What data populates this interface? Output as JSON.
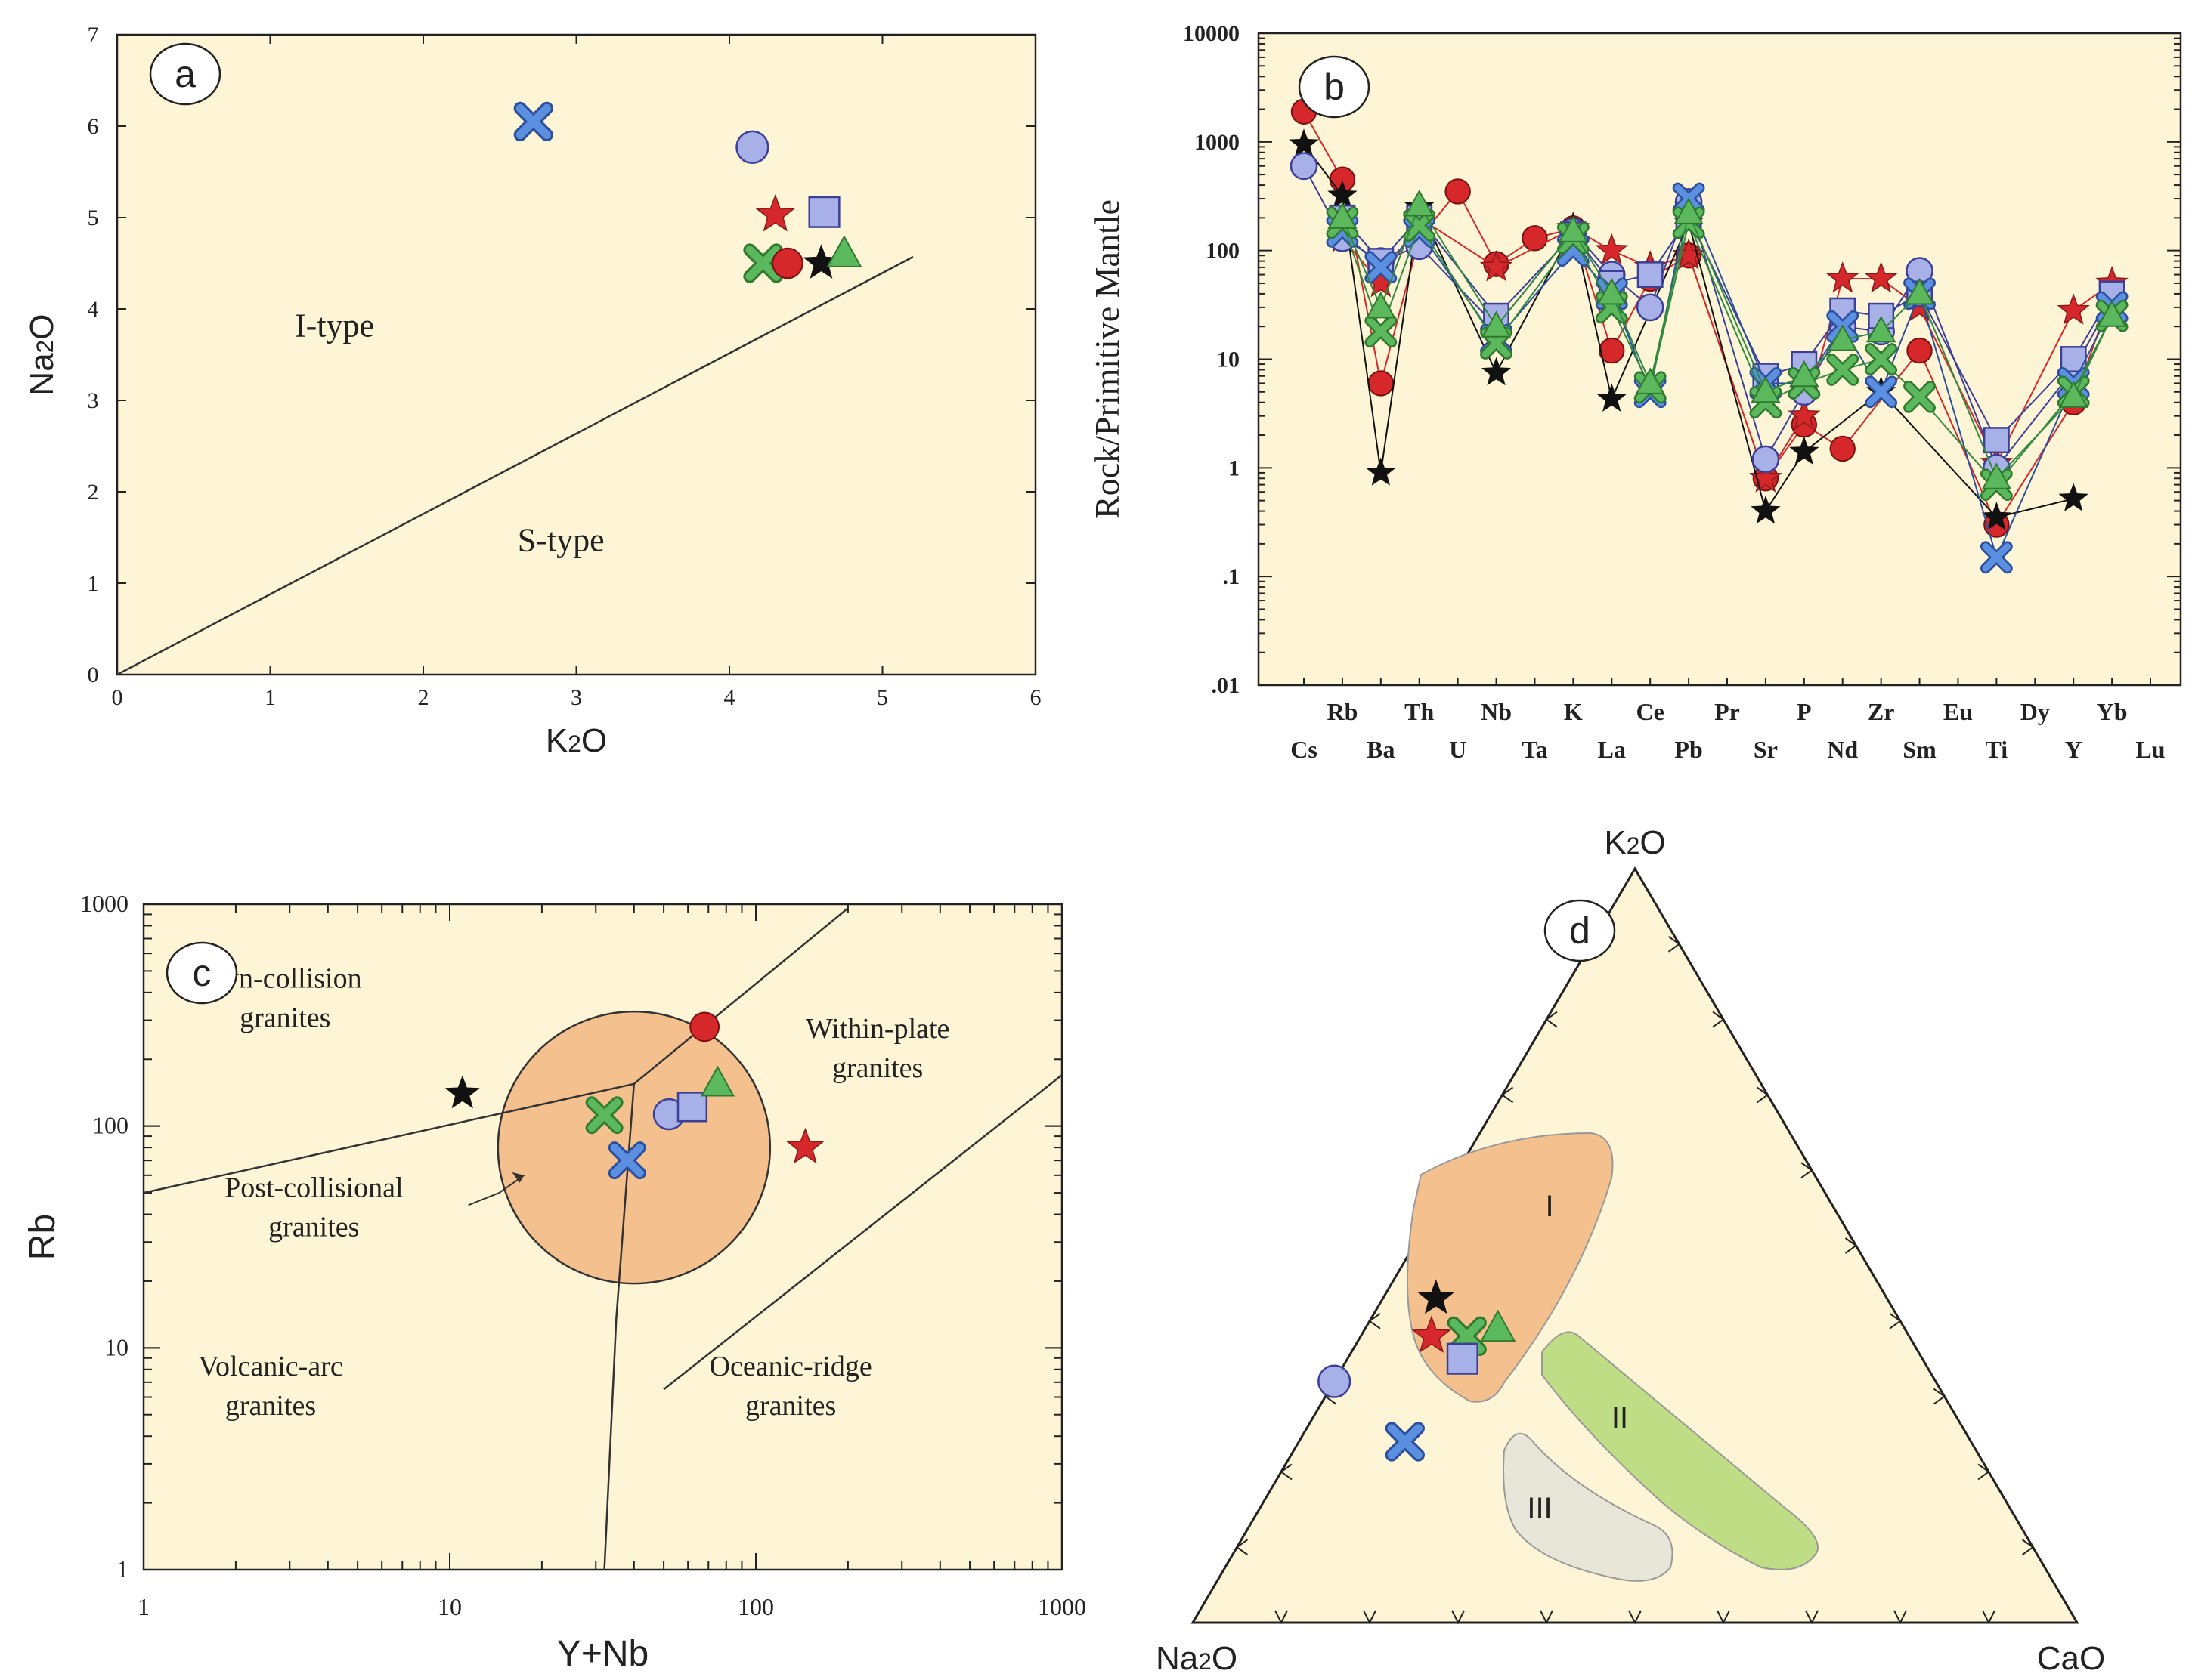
{
  "colors": {
    "panel_bg": "#fdf5d6",
    "red": "#d6282b",
    "blue_cross": "#5b8fdf",
    "green": "#5cb85c",
    "lilac": "#a8b0e8",
    "lilac_stroke": "#3b3f98",
    "black": "#111111",
    "orange_field": "#f3c08e",
    "green_field": "#bedd84",
    "grey_field": "#e8e6d8"
  },
  "chart_data": [
    {
      "id": "a",
      "type": "scatter",
      "panel_label": "a",
      "xlabel": "K2O",
      "ylabel": "Na2O",
      "xlim": [
        0,
        6
      ],
      "ylim": [
        0,
        7
      ],
      "xticks": [
        "0",
        "1",
        "2",
        "3",
        "4",
        "5",
        "6"
      ],
      "yticks": [
        "0",
        "1",
        "2",
        "3",
        "4",
        "5",
        "6",
        "7"
      ],
      "regions": [
        "I-type",
        "S-type"
      ],
      "boundary_line": [
        [
          0,
          0
        ],
        [
          5.2,
          4.57
        ]
      ],
      "points": [
        {
          "series": "blue-cross",
          "x": 2.72,
          "y": 6.05
        },
        {
          "series": "lilac-circle",
          "x": 4.15,
          "y": 5.77
        },
        {
          "series": "red-star",
          "x": 4.3,
          "y": 5.03
        },
        {
          "series": "lilac-square",
          "x": 4.62,
          "y": 5.06
        },
        {
          "series": "green-cross",
          "x": 4.22,
          "y": 4.5
        },
        {
          "series": "red-circle",
          "x": 4.38,
          "y": 4.5
        },
        {
          "series": "black-star",
          "x": 4.6,
          "y": 4.5
        },
        {
          "series": "green-triangle",
          "x": 4.75,
          "y": 4.6
        }
      ]
    },
    {
      "id": "b",
      "type": "line",
      "panel_label": "b",
      "ylabel": "Rock/Primitive Mantle",
      "yscale": "log",
      "ylim": [
        0.01,
        10000
      ],
      "yticks": [
        "10000",
        "1000",
        "100",
        "10",
        "1",
        ".1",
        ".01"
      ],
      "elements": [
        "Cs",
        "Rb",
        "Ba",
        "Th",
        "U",
        "Nb",
        "Ta",
        "K",
        "La",
        "Ce",
        "Pb",
        "Pr",
        "Sr",
        "P",
        "Nd",
        "Zr",
        "Sm",
        "Eu",
        "Ti",
        "Dy",
        "Y",
        "Yb",
        "Lu"
      ],
      "x_labels_top": [
        "Rb",
        "Th",
        "Nb",
        "K",
        "Ce",
        "Pr",
        "P",
        "Zr",
        "Eu",
        "Dy",
        "Yb"
      ],
      "x_labels_bottom": [
        "Cs",
        "Ba",
        "U",
        "Ta",
        "La",
        "Pb",
        "Sr",
        "Nd",
        "Sm",
        "Ti",
        "Y",
        "Lu"
      ],
      "series": [
        {
          "name": "red-circle",
          "values": [
            1900,
            450,
            6,
            130,
            350,
            75,
            130,
            160,
            12,
            55,
            90,
            null,
            0.8,
            2.5,
            1.5,
            null,
            12,
            null,
            0.3,
            null,
            4,
            40,
            null
          ]
        },
        {
          "name": "red-star",
          "values": [
            null,
            130,
            50,
            200,
            null,
            70,
            null,
            160,
            100,
            70,
            90,
            null,
            0.8,
            3,
            55,
            55,
            30,
            null,
            1.1,
            null,
            28,
            50,
            null
          ]
        },
        {
          "name": "black-star",
          "values": [
            950,
            320,
            0.9,
            250,
            null,
            7.5,
            null,
            160,
            4.3,
            null,
            180,
            null,
            0.4,
            1.4,
            null,
            5,
            null,
            null,
            0.35,
            null,
            0.52,
            null,
            null
          ]
        },
        {
          "name": "lilac-circle",
          "values": [
            600,
            130,
            80,
            110,
            null,
            20,
            null,
            150,
            60,
            30,
            280,
            null,
            1.2,
            5,
            20,
            18,
            65,
            null,
            1.0,
            null,
            8,
            35,
            null
          ]
        },
        {
          "name": "lilac-square",
          "values": [
            null,
            200,
            80,
            200,
            null,
            25,
            null,
            140,
            50,
            60,
            200,
            null,
            7,
            9,
            28,
            25,
            40,
            null,
            1.8,
            null,
            10,
            40,
            null
          ]
        },
        {
          "name": "blue-cross",
          "values": [
            null,
            150,
            70,
            150,
            null,
            15,
            null,
            100,
            40,
            5,
            300,
            null,
            6,
            6,
            20,
            5,
            40,
            null,
            0.15,
            null,
            6,
            30,
            null
          ]
        },
        {
          "name": "green-cross",
          "values": [
            null,
            180,
            18,
            170,
            null,
            14,
            null,
            130,
            30,
            5.5,
            180,
            null,
            4,
            6,
            8,
            10,
            4.5,
            null,
            0.7,
            null,
            5,
            25,
            null
          ]
        },
        {
          "name": "green-triangle",
          "values": [
            null,
            200,
            30,
            260,
            null,
            20,
            null,
            150,
            40,
            6,
            220,
            null,
            5,
            7,
            15,
            18,
            40,
            null,
            0.8,
            null,
            4.5,
            25,
            null
          ]
        }
      ]
    },
    {
      "id": "c",
      "type": "scatter",
      "panel_label": "c",
      "xlabel": "Y+Nb",
      "ylabel": "Rb",
      "xscale": "log",
      "yscale": "log",
      "xlim": [
        1,
        1000
      ],
      "ylim": [
        1,
        1000
      ],
      "xticks": [
        "1",
        "10",
        "100",
        "1000"
      ],
      "yticks": [
        "1",
        "10",
        "100",
        "1000"
      ],
      "regions": [
        {
          "lines": [
            "Syn-collision",
            "granites"
          ]
        },
        {
          "lines": [
            "Within-plate",
            "granites"
          ]
        },
        {
          "lines": [
            "Post-collisional",
            "granites"
          ]
        },
        {
          "lines": [
            "Volcanic-arc",
            "granites"
          ]
        },
        {
          "lines": [
            "Oceanic-ridge",
            "granites"
          ]
        }
      ],
      "points": [
        {
          "series": "black-star",
          "x": 11,
          "y": 140
        },
        {
          "series": "green-cross",
          "x": 32,
          "y": 112
        },
        {
          "series": "lilac-circle",
          "x": 52,
          "y": 113
        },
        {
          "series": "lilac-square",
          "x": 62,
          "y": 122
        },
        {
          "series": "green-triangle",
          "x": 75,
          "y": 155
        },
        {
          "series": "red-circle",
          "x": 68,
          "y": 280
        },
        {
          "series": "blue-cross",
          "x": 38,
          "y": 70
        },
        {
          "series": "red-star",
          "x": 145,
          "y": 80
        }
      ]
    },
    {
      "id": "d",
      "type": "ternary",
      "panel_label": "d",
      "apex_labels": {
        "top": "K2O",
        "left": "Na2O",
        "right": "CaO"
      },
      "fields": [
        "I",
        "II",
        "III"
      ],
      "points": [
        {
          "series": "black-star",
          "K2O": 43,
          "Na2O": 51,
          "CaO": 6
        },
        {
          "series": "red-star",
          "K2O": 38,
          "Na2O": 54,
          "CaO": 8
        },
        {
          "series": "green-cross",
          "K2O": 38,
          "Na2O": 50,
          "CaO": 12
        },
        {
          "series": "green-triangle",
          "K2O": 39,
          "Na2O": 46,
          "CaO": 15
        },
        {
          "series": "lilac-square",
          "K2O": 35,
          "Na2O": 52,
          "CaO": 13
        },
        {
          "series": "lilac-circle",
          "K2O": 32,
          "Na2O": 68,
          "CaO": 0
        },
        {
          "series": "blue-cross",
          "K2O": 24,
          "Na2O": 64,
          "CaO": 12
        }
      ]
    }
  ]
}
